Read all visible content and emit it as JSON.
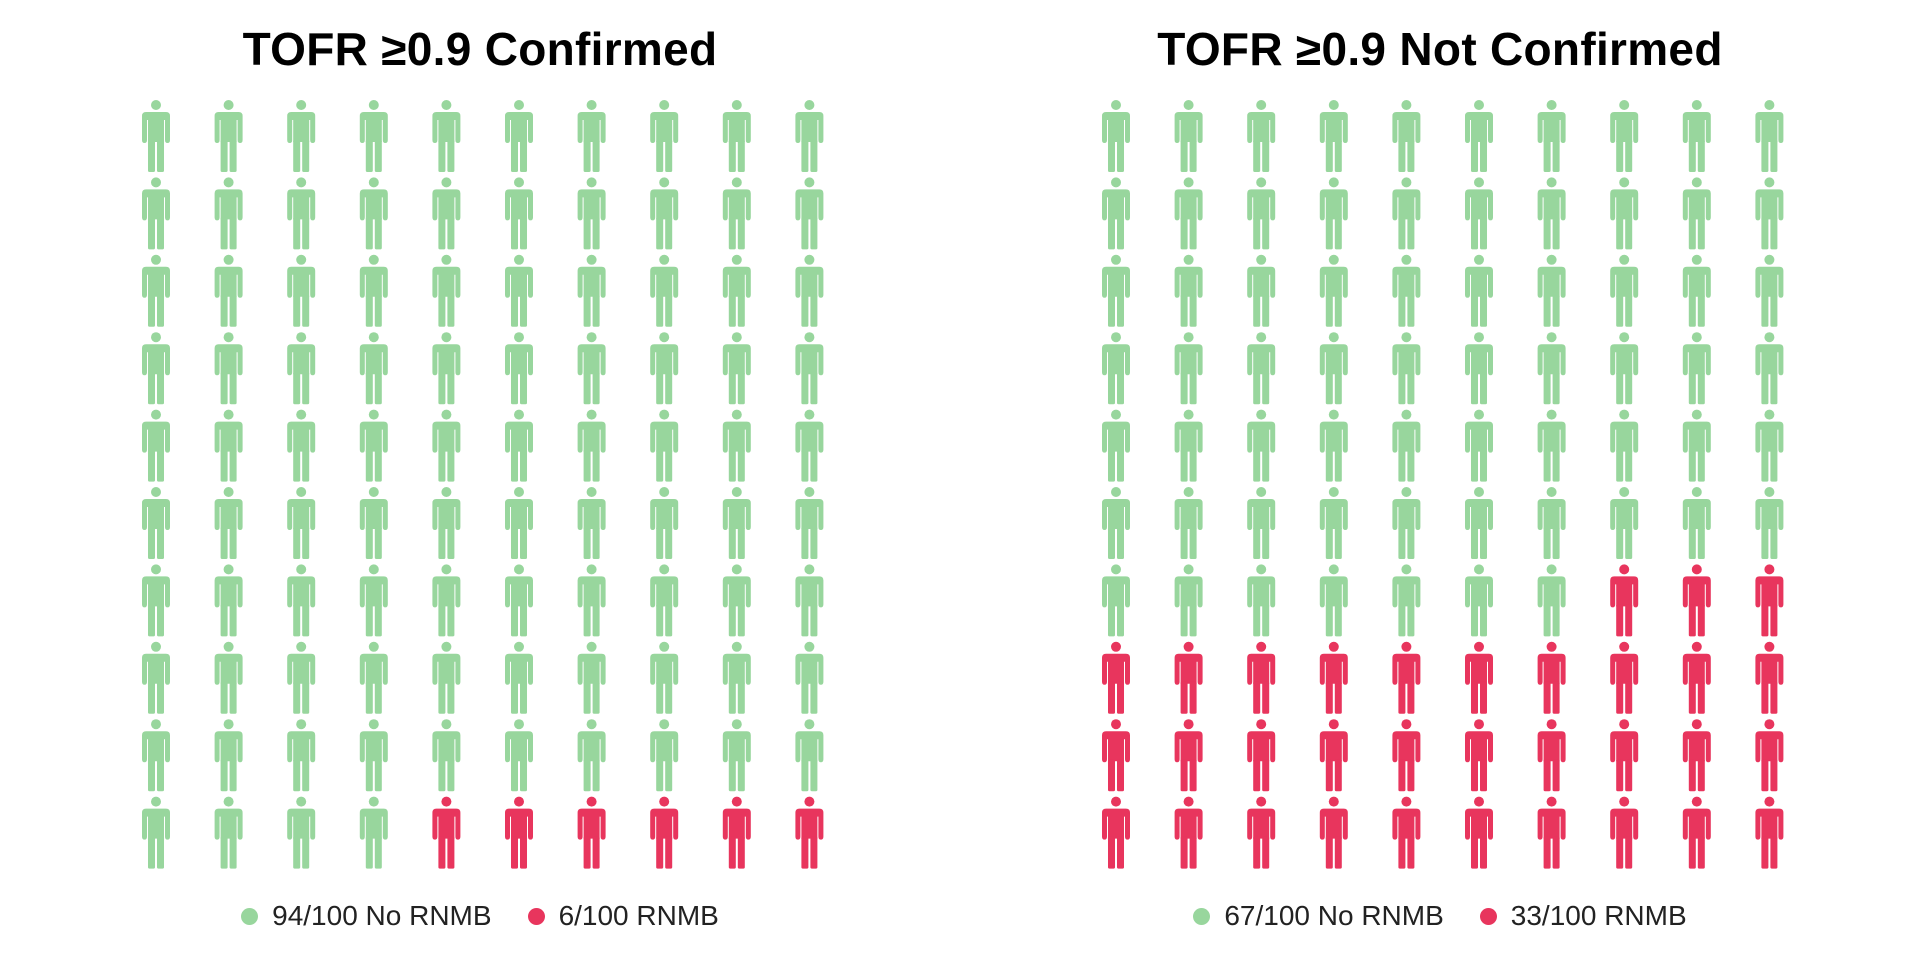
{
  "colors": {
    "no_rnmb": "#98d69d",
    "rnmb": "#e8355d"
  },
  "chart_data": [
    {
      "type": "waffle",
      "title": "TOFR ≥0.9 Confirmed",
      "grid": {
        "rows": 10,
        "cols": 10,
        "fill_order": "top-left, row by row"
      },
      "icon": "person-icon",
      "series": [
        {
          "name": "No RNMB",
          "value": 94,
          "total": 100,
          "color": "#98d69d"
        },
        {
          "name": "RNMB",
          "value": 6,
          "total": 100,
          "color": "#e8355d"
        }
      ],
      "legend": [
        {
          "label": "94/100 No RNMB",
          "color": "#98d69d"
        },
        {
          "label": "6/100 RNMB",
          "color": "#e8355d"
        }
      ],
      "legend_position": "bottom"
    },
    {
      "type": "waffle",
      "title": "TOFR ≥0.9 Not Confirmed",
      "grid": {
        "rows": 10,
        "cols": 10,
        "fill_order": "top-left, row by row"
      },
      "icon": "person-icon",
      "series": [
        {
          "name": "No RNMB",
          "value": 67,
          "total": 100,
          "color": "#98d69d"
        },
        {
          "name": "RNMB",
          "value": 33,
          "total": 100,
          "color": "#e8355d"
        }
      ],
      "legend": [
        {
          "label": "67/100 No RNMB",
          "color": "#98d69d"
        },
        {
          "label": "33/100 RNMB",
          "color": "#e8355d"
        }
      ],
      "legend_position": "bottom"
    }
  ]
}
